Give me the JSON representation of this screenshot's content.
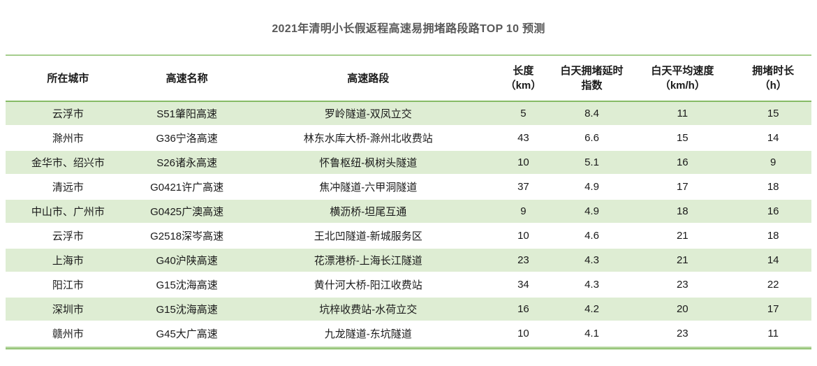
{
  "title": "2021年清明小长假返程高速易拥堵路段路TOP 10 预测",
  "colors": {
    "stripe_green": "#deedd3",
    "border_light_green": "#c5e0b4",
    "border_mid_green": "#86bb66",
    "border_dark_green": "#70ad47",
    "title_gray": "#595959",
    "text_black": "#1a1a1a"
  },
  "table": {
    "columns": [
      {
        "line1": "所在城市",
        "line2": ""
      },
      {
        "line1": "高速名称",
        "line2": ""
      },
      {
        "line1": "高速路段",
        "line2": ""
      },
      {
        "line1": "长度",
        "line2": "（km）"
      },
      {
        "line1": "白天拥堵延时",
        "line2": "指数"
      },
      {
        "line1": "白天平均速度",
        "line2": "（km/h）"
      },
      {
        "line1": "拥堵时长",
        "line2": "（h）"
      }
    ],
    "rows": [
      [
        "云浮市",
        "S51肇阳高速",
        "罗岭隧道-双凤立交",
        "5",
        "8.4",
        "11",
        "15"
      ],
      [
        "滁州市",
        "G36宁洛高速",
        "林东水库大桥-滁州北收费站",
        "43",
        "6.6",
        "15",
        "14"
      ],
      [
        "金华市、绍兴市",
        "S26诸永高速",
        "怀鲁枢纽-枫树头隧道",
        "10",
        "5.1",
        "16",
        "9"
      ],
      [
        "清远市",
        "G0421许广高速",
        "焦冲隧道-六甲洞隧道",
        "37",
        "4.9",
        "17",
        "18"
      ],
      [
        "中山市、广州市",
        "G0425广澳高速",
        "横沥桥-坦尾互通",
        "9",
        "4.9",
        "18",
        "16"
      ],
      [
        "云浮市",
        "G2518深岑高速",
        "王北凹隧道-新城服务区",
        "10",
        "4.6",
        "21",
        "18"
      ],
      [
        "上海市",
        "G40沪陕高速",
        "花漂港桥-上海长江隧道",
        "23",
        "4.3",
        "21",
        "14"
      ],
      [
        "阳江市",
        "G15沈海高速",
        "黄什河大桥-阳江收费站",
        "34",
        "4.3",
        "23",
        "22"
      ],
      [
        "深圳市",
        "G15沈海高速",
        "坑梓收费站-水荷立交",
        "16",
        "4.2",
        "20",
        "17"
      ],
      [
        "赣州市",
        "G45大广高速",
        "九龙隧道-东坑隧道",
        "10",
        "4.1",
        "23",
        "11"
      ]
    ]
  },
  "chart_data": {
    "type": "table",
    "title": "2021年清明小长假返程高速易拥堵路段路TOP 10 预测",
    "columns": [
      "所在城市",
      "高速名称",
      "高速路段",
      "长度（km）",
      "白天拥堵延时指数",
      "白天平均速度（km/h）",
      "拥堵时长（h）"
    ],
    "rows": [
      [
        "云浮市",
        "S51肇阳高速",
        "罗岭隧道-双凤立交",
        5,
        8.4,
        11,
        15
      ],
      [
        "滁州市",
        "G36宁洛高速",
        "林东水库大桥-滁州北收费站",
        43,
        6.6,
        15,
        14
      ],
      [
        "金华市、绍兴市",
        "S26诸永高速",
        "怀鲁枢纽-枫树头隧道",
        10,
        5.1,
        16,
        9
      ],
      [
        "清远市",
        "G0421许广高速",
        "焦冲隧道-六甲洞隧道",
        37,
        4.9,
        17,
        18
      ],
      [
        "中山市、广州市",
        "G0425广澳高速",
        "横沥桥-坦尾互通",
        9,
        4.9,
        18,
        16
      ],
      [
        "云浮市",
        "G2518深岑高速",
        "王北凹隧道-新城服务区",
        10,
        4.6,
        21,
        18
      ],
      [
        "上海市",
        "G40沪陕高速",
        "花漂港桥-上海长江隧道",
        23,
        4.3,
        21,
        14
      ],
      [
        "阳江市",
        "G15沈海高速",
        "黄什河大桥-阳江收费站",
        34,
        4.3,
        23,
        22
      ],
      [
        "深圳市",
        "G15沈海高速",
        "坑梓收费站-水荷立交",
        16,
        4.2,
        20,
        17
      ],
      [
        "赣州市",
        "G45大广高速",
        "九龙隧道-东坑隧道",
        10,
        4.1,
        23,
        11
      ]
    ],
    "legend_position": "none",
    "grid": "row-stripes"
  }
}
